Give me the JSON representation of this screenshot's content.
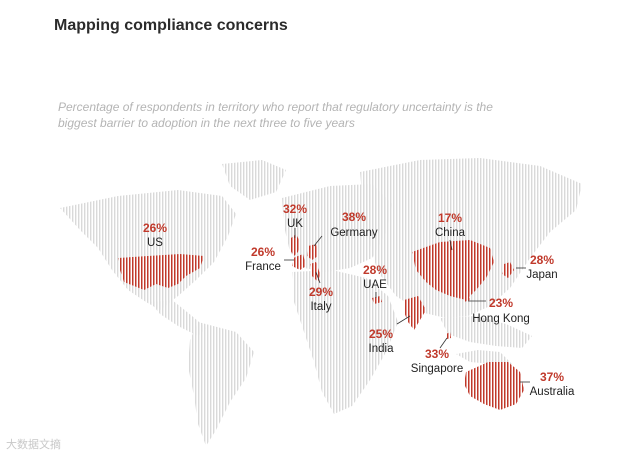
{
  "header": {
    "title": "Mapping compliance concerns",
    "subtitle_line1": "Percentage of respondents in territory who report that regulatory uncertainty is the",
    "subtitle_line2": "biggest barrier to adoption in the next three to five years"
  },
  "watermark": "大数据文摘",
  "colors": {
    "accent": "#c0392b",
    "map_stripe": "#d9d9d9",
    "text": "#222222"
  },
  "chart_data": {
    "type": "map",
    "title": "Mapping compliance concerns",
    "subtitle": "Percentage of respondents in territory who report that regulatory uncertainty is the biggest barrier to adoption in the next three to five years",
    "unit": "%",
    "territories": [
      {
        "name": "US",
        "value": 26
      },
      {
        "name": "UK",
        "value": 32
      },
      {
        "name": "France",
        "value": 26
      },
      {
        "name": "Germany",
        "value": 38
      },
      {
        "name": "Italy",
        "value": 29
      },
      {
        "name": "UAE",
        "value": 28
      },
      {
        "name": "India",
        "value": 25
      },
      {
        "name": "China",
        "value": 17
      },
      {
        "name": "Japan",
        "value": 28
      },
      {
        "name": "Hong Kong",
        "value": 23
      },
      {
        "name": "Singapore",
        "value": 33
      },
      {
        "name": "Australia",
        "value": 37
      }
    ]
  }
}
